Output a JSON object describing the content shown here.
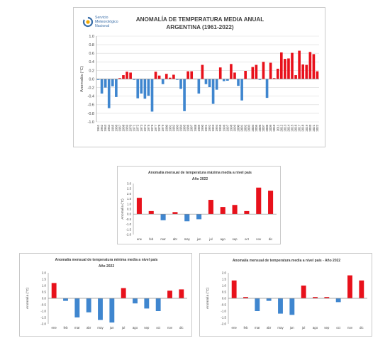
{
  "colors": {
    "positive": "#e8111b",
    "negative": "#3f86cf",
    "axis": "#8c8c8c",
    "grid": "#d9d9d9",
    "logo": "#3a6ea8"
  },
  "logo": {
    "line1": "Servicio",
    "line2": "Meteorológico",
    "line3": "Nacional",
    "icon": "smn-swirl-logo"
  },
  "chart_data": [
    {
      "type": "bar",
      "title": "ANOMALÍA DE TEMPERATURA MEDIA ANUAL",
      "subtitle": "ARGENTINA (1961-2022)",
      "ylabel": "Anomalía (°C)",
      "xlabel": "",
      "ylim": [
        -1.0,
        1.0
      ],
      "yticks": [
        "1.0",
        "0.8",
        "0.6",
        "0.4",
        "0.2",
        "0.0",
        "-0.2",
        "-0.4",
        "-0.6",
        "-0.8",
        "-1.0"
      ],
      "grid": true,
      "categories": [
        "1961",
        "1962",
        "1963",
        "1964",
        "1965",
        "1966",
        "1967",
        "1968",
        "1969",
        "1970",
        "1971",
        "1972",
        "1973",
        "1974",
        "1975",
        "1976",
        "1977",
        "1978",
        "1979",
        "1980",
        "1981",
        "1982",
        "1983",
        "1984",
        "1985",
        "1986",
        "1987",
        "1988",
        "1989",
        "1990",
        "1991",
        "1992",
        "1993",
        "1994",
        "1995",
        "1996",
        "1997",
        "1998",
        "1999",
        "2000",
        "2001",
        "2002",
        "2003",
        "2004",
        "2005",
        "2006",
        "2007",
        "2008",
        "2009",
        "2010",
        "2011",
        "2012",
        "2013",
        "2014",
        "2015",
        "2016",
        "2017",
        "2018",
        "2019",
        "2020",
        "2021",
        "2022"
      ],
      "values": [
        -0.02,
        -0.34,
        -0.2,
        -0.68,
        -0.17,
        -0.42,
        0.02,
        0.09,
        0.17,
        0.15,
        -0.02,
        -0.45,
        -0.34,
        -0.46,
        -0.39,
        -0.76,
        0.17,
        0.08,
        -0.12,
        0.12,
        0.03,
        0.1,
        -0.02,
        -0.23,
        -0.75,
        0.18,
        0.18,
        0.0,
        -0.34,
        0.33,
        -0.12,
        -0.19,
        -0.58,
        -0.25,
        0.27,
        -0.05,
        -0.04,
        0.35,
        0.15,
        -0.16,
        -0.5,
        0.19,
        0.0,
        0.28,
        0.33,
        -0.02,
        0.4,
        -0.44,
        0.38,
        0.02,
        0.24,
        0.62,
        0.47,
        0.48,
        0.61,
        0.09,
        0.66,
        0.34,
        0.33,
        0.63,
        0.58,
        0.18
      ]
    },
    {
      "type": "bar",
      "title": "Anomalía mensual de temperatura máxima media a nivel país",
      "subtitle": "Año 2022",
      "ylabel": "Anomalía (°C)",
      "xlabel": "",
      "ylim": [
        -2.0,
        3.0
      ],
      "yticks": [
        "3.0",
        "2.5",
        "2.0",
        "1.5",
        "1.0",
        "0.5",
        "0.0",
        "-0.5",
        "-1.0",
        "-1.5",
        "-2.0"
      ],
      "grid": false,
      "categories": [
        "ene",
        "feb",
        "mar",
        "abr",
        "may",
        "jun",
        "jul",
        "ago",
        "sep",
        "oct",
        "nov",
        "dic"
      ],
      "values": [
        1.6,
        0.3,
        -0.6,
        0.2,
        -0.7,
        -0.5,
        1.4,
        0.7,
        0.9,
        0.3,
        2.6,
        2.3
      ]
    },
    {
      "type": "bar",
      "title": "Anomalía mensual de temperatura mínima media a nivel país",
      "subtitle": "Año 2022",
      "ylabel": "Anomalía (°C)",
      "xlabel": "",
      "ylim": [
        -2.0,
        2.0
      ],
      "yticks": [
        "2.0",
        "1.5",
        "1.0",
        "0.5",
        "0.0",
        "-0.5",
        "-1.0",
        "-1.5",
        "-2.0"
      ],
      "grid": false,
      "categories": [
        "ene",
        "feb",
        "mar",
        "abr",
        "may",
        "jun",
        "jul",
        "ago",
        "sep",
        "oct",
        "nov",
        "dic"
      ],
      "values": [
        1.2,
        -0.2,
        -1.5,
        -1.1,
        -1.7,
        -1.9,
        0.8,
        -0.4,
        -0.8,
        -1.0,
        0.6,
        0.7
      ]
    },
    {
      "type": "bar",
      "title": "Anomalía mensual de temperatura media a nivel país - Año 2022",
      "subtitle": "",
      "ylabel": "Anomalía (°C)",
      "xlabel": "",
      "ylim": [
        -2.0,
        2.0
      ],
      "yticks": [
        "2.0",
        "1.5",
        "1.0",
        "0.5",
        "0.0",
        "-0.5",
        "-1.0",
        "-1.5",
        "-2.0"
      ],
      "grid": false,
      "categories": [
        "ene",
        "feb",
        "mar",
        "abr",
        "may",
        "jun",
        "jul",
        "ago",
        "sep",
        "oct",
        "nov",
        "dic"
      ],
      "values": [
        1.4,
        0.1,
        -1.0,
        -0.2,
        -1.2,
        -1.3,
        1.0,
        0.1,
        0.1,
        -0.3,
        1.8,
        1.4
      ]
    }
  ]
}
